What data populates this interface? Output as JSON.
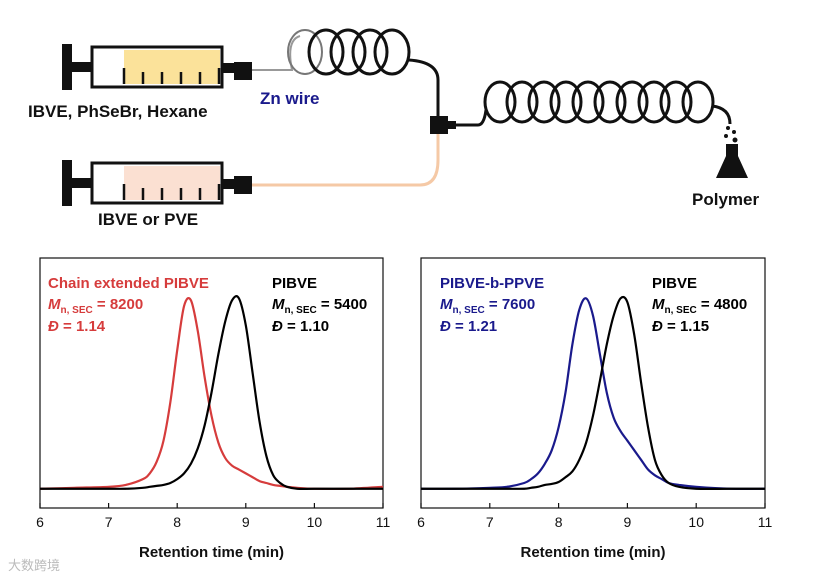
{
  "diagram": {
    "syringe_top_label": "IBVE, PhSeBr, Hexane",
    "wire_label": "Zn wire",
    "syringe_bottom_label": "IBVE or PVE",
    "product_label": "Polymer",
    "watermark": "大数跨境"
  },
  "chart_data": [
    {
      "type": "line",
      "xlabel": "Retention time (min)",
      "xlim": [
        6,
        11
      ],
      "xticks": [
        6,
        7,
        8,
        9,
        10,
        11
      ],
      "ylim": [
        -0.1,
        1.2
      ],
      "x": [
        6,
        6.5,
        7,
        7.25,
        7.5,
        7.6,
        7.7,
        7.8,
        7.9,
        8.0,
        8.1,
        8.2,
        8.3,
        8.4,
        8.5,
        8.6,
        8.7,
        8.8,
        8.9,
        9.0,
        9.1,
        9.2,
        9.3,
        9.4,
        9.5,
        9.6,
        9.75,
        10,
        10.5,
        11
      ],
      "series": [
        {
          "name": "Chain extended PIBVE",
          "color": "#d63c3c",
          "mn": {
            "symbol": "M",
            "sub": "n, SEC",
            "text": " = 8200"
          },
          "dispersity": {
            "symbol": "Đ",
            "text": " = 1.14"
          },
          "values": [
            0,
            0.005,
            0.01,
            0.02,
            0.05,
            0.08,
            0.14,
            0.25,
            0.45,
            0.72,
            0.95,
            0.98,
            0.82,
            0.58,
            0.38,
            0.24,
            0.16,
            0.12,
            0.1,
            0.08,
            0.06,
            0.04,
            0.03,
            0.02,
            0.015,
            0.01,
            0.005,
            0,
            0,
            0.01
          ]
        },
        {
          "name": "PIBVE",
          "color": "#000000",
          "mn": {
            "symbol": "M",
            "sub": "n, SEC",
            "text": " = 5400"
          },
          "dispersity": {
            "symbol": "Đ",
            "text": " = 1.10"
          },
          "values": [
            0,
            0,
            0,
            0,
            0.005,
            0.01,
            0.015,
            0.02,
            0.03,
            0.05,
            0.08,
            0.13,
            0.21,
            0.33,
            0.5,
            0.7,
            0.87,
            0.98,
            0.99,
            0.85,
            0.6,
            0.35,
            0.17,
            0.07,
            0.03,
            0.01,
            0,
            0,
            0,
            0
          ]
        }
      ]
    },
    {
      "type": "line",
      "xlabel": "Retention time (min)",
      "xlim": [
        6,
        11
      ],
      "xticks": [
        6,
        7,
        8,
        9,
        10,
        11
      ],
      "ylim": [
        -0.1,
        1.2
      ],
      "x": [
        6,
        6.5,
        7,
        7.25,
        7.5,
        7.6,
        7.7,
        7.8,
        7.9,
        8.0,
        8.1,
        8.2,
        8.3,
        8.4,
        8.5,
        8.6,
        8.7,
        8.8,
        8.9,
        9.0,
        9.1,
        9.2,
        9.3,
        9.4,
        9.5,
        9.6,
        9.75,
        10,
        10.5,
        11
      ],
      "series": [
        {
          "name": "PIBVE-b-PPVE",
          "color": "#1a1a8c",
          "mn": {
            "symbol": "M",
            "sub": "n, SEC",
            "text": " = 7600"
          },
          "dispersity": {
            "symbol": "Đ",
            "text": " = 1.21"
          },
          "values": [
            0,
            0,
            0.005,
            0.01,
            0.03,
            0.05,
            0.08,
            0.13,
            0.2,
            0.32,
            0.5,
            0.75,
            0.93,
            0.99,
            0.9,
            0.7,
            0.5,
            0.37,
            0.3,
            0.25,
            0.2,
            0.15,
            0.1,
            0.07,
            0.05,
            0.03,
            0.02,
            0.01,
            0,
            0
          ]
        },
        {
          "name": "PIBVE",
          "color": "#000000",
          "mn": {
            "symbol": "M",
            "sub": "n, SEC",
            "text": " = 4800"
          },
          "dispersity": {
            "symbol": "Đ",
            "text": " = 1.15"
          },
          "values": [
            0,
            0,
            0,
            0,
            0,
            0.005,
            0.01,
            0.02,
            0.025,
            0.035,
            0.06,
            0.09,
            0.15,
            0.24,
            0.38,
            0.56,
            0.75,
            0.9,
            0.99,
            0.97,
            0.8,
            0.55,
            0.32,
            0.15,
            0.07,
            0.03,
            0.01,
            0,
            0,
            0
          ]
        }
      ]
    }
  ]
}
